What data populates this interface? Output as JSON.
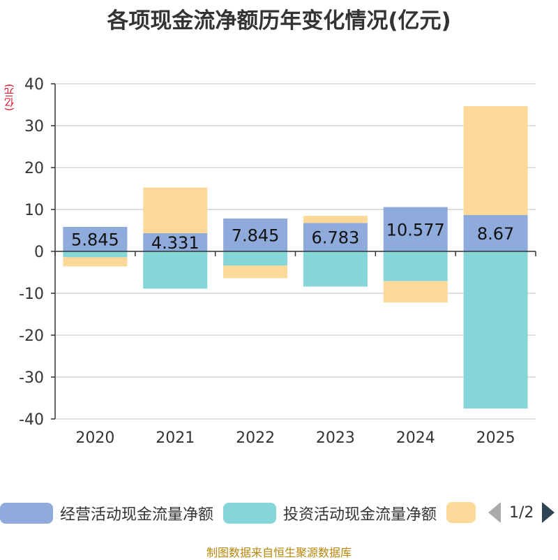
{
  "title": "各项现金流净额历年变化情况(亿元)",
  "unit_label": "(亿元)",
  "legend": {
    "items": [
      {
        "label": "经营活动现金流量净额",
        "color": "#8eabdb"
      },
      {
        "label": "投资活动现金流量净额",
        "color": "#86d5d8"
      },
      {
        "label": "",
        "color": "#fdd999"
      }
    ],
    "page": "1/2"
  },
  "source": "制图数据来自恒生聚源数据库",
  "chart_data": {
    "type": "bar",
    "stacked": true,
    "categories": [
      "2020",
      "2021",
      "2022",
      "2023",
      "2024",
      "2025"
    ],
    "series": [
      {
        "name": "经营活动现金流量净额",
        "color": "#8eabdb",
        "values": [
          5.845,
          4.331,
          7.845,
          6.783,
          10.577,
          8.67
        ],
        "labels": [
          "5.845",
          "4.331",
          "7.845",
          "6.783",
          "10.577",
          "8.67"
        ]
      },
      {
        "name": "投资活动现金流量净额",
        "color": "#86d5d8",
        "values": [
          -1.4,
          -8.9,
          -3.4,
          -8.4,
          -7.1,
          -37.5
        ]
      },
      {
        "name": "",
        "color": "#fdd999",
        "values": [
          -2.2,
          10.9,
          -3.0,
          1.7,
          -5.1,
          26.0
        ]
      }
    ],
    "ylim": [
      -40,
      40
    ],
    "yticks": [
      -40,
      -30,
      -20,
      -10,
      0,
      10,
      20,
      30,
      40
    ],
    "ylabel": "(亿元)",
    "grid": true
  }
}
